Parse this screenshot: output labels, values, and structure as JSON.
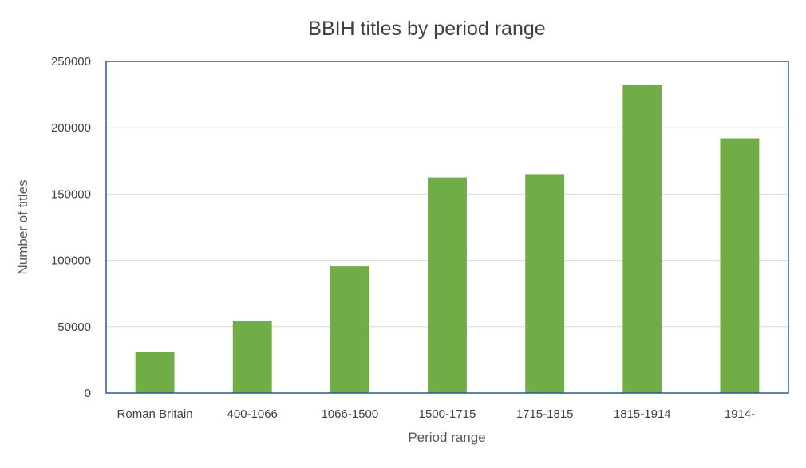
{
  "chart_data": {
    "type": "bar",
    "title": "BBIH titles by period range",
    "xlabel": "Period range",
    "ylabel": "Number of titles",
    "categories": [
      "Roman Britain",
      "400-1066",
      "1066-1500",
      "1500-1715",
      "1715-1815",
      "1815-1914",
      "1914-"
    ],
    "values": [
      31000,
      54500,
      95500,
      162500,
      165000,
      232500,
      192000
    ],
    "ylim": [
      0,
      250000
    ],
    "yticks": [
      "0",
      "50000",
      "100000",
      "150000",
      "200000",
      "250000"
    ],
    "grid": true,
    "legend": "none",
    "colors": {
      "bar": "#70ad47",
      "plot_border": "#2f5597",
      "gridline": "#d9d9d9"
    }
  }
}
